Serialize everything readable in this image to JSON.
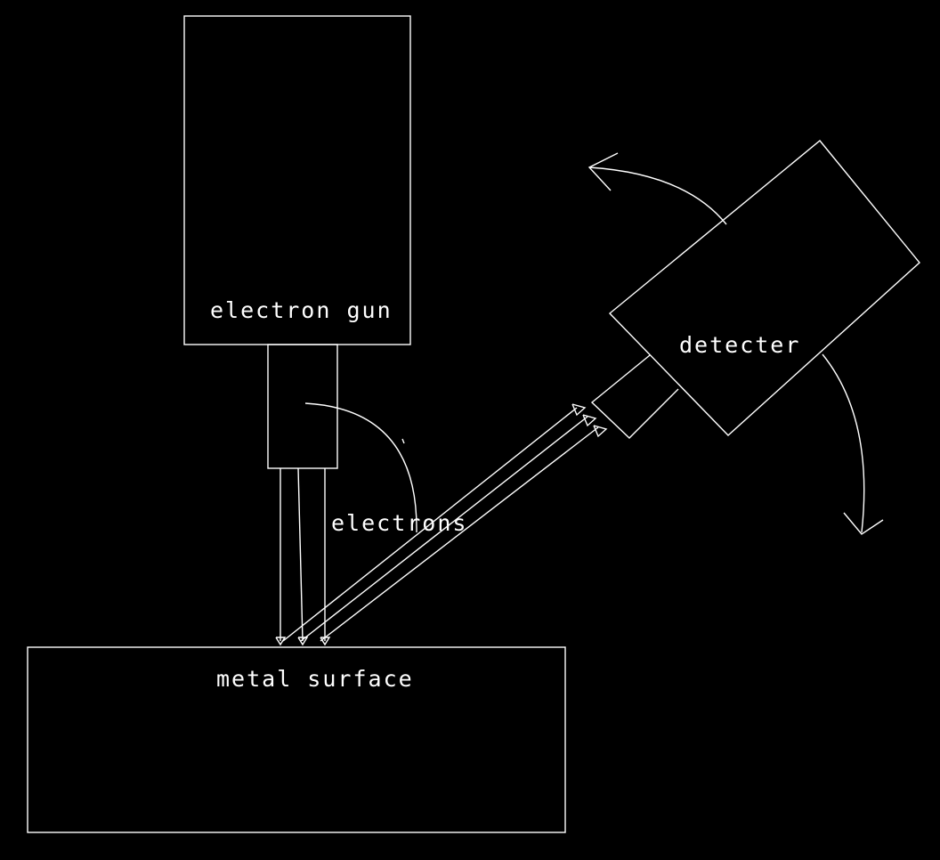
{
  "diagram": {
    "colors": {
      "background": "#000000",
      "stroke": "#ffffff",
      "text": "#ffffff"
    },
    "labels": {
      "electron_gun": "electron gun",
      "detecter": "detecter",
      "electrons": "electrons",
      "metal_surface": "metal surface"
    },
    "icons": [
      "rotate-counterclockwise-arrow-icon",
      "rotate-clockwise-arrow-icon"
    ]
  }
}
